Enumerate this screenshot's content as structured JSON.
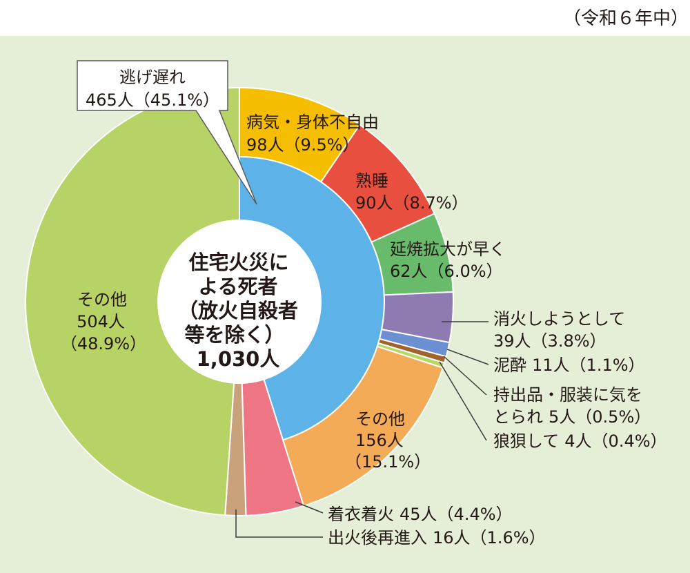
{
  "note": "（令和６年中）",
  "chart_data": {
    "type": "pie",
    "center_label": [
      "住宅火災に",
      "よる死者",
      "（放火自殺者",
      "等を除く）",
      "1,030人"
    ],
    "total": 1030,
    "slices": [
      {
        "name": "逃げ遅れ",
        "value": 465,
        "percent": 45.1,
        "count": "465人",
        "pct": "（45.1%）",
        "color": "#5db3e8",
        "breakdown": [
          {
            "name": "病気・身体不自由",
            "value": 98,
            "percent": 9.5,
            "count": "98人",
            "pct": "（9.5%）",
            "color": "#f5be00"
          },
          {
            "name": "熟睡",
            "value": 90,
            "percent": 8.7,
            "count": "90人",
            "pct": "（8.7%）",
            "color": "#e84f3f"
          },
          {
            "name": "延焼拡大が早く",
            "value": 62,
            "percent": 6.0,
            "count": "62人",
            "pct": "（6.0%）",
            "color": "#67bb6b"
          },
          {
            "name": "消火しようとして",
            "value": 39,
            "percent": 3.8,
            "count": "39人",
            "pct": "（3.8%）",
            "color": "#8e7bb2"
          },
          {
            "name": "泥酔",
            "value": 11,
            "percent": 1.1,
            "count": "11人",
            "pct": "（1.1%）",
            "color": "#6d90d2"
          },
          {
            "name_lines": [
              "持出品・服装に気を",
              "とられ"
            ],
            "value": 5,
            "percent": 0.5,
            "count": "5人",
            "pct": "（0.5%）",
            "color": "#a2632b"
          },
          {
            "name": "狼狽して",
            "value": 4,
            "percent": 0.4,
            "count": "4人",
            "pct": "（0.4%）",
            "color": "#b6d764"
          },
          {
            "name": "その他",
            "value": 156,
            "percent": 15.1,
            "count": "156人",
            "pct": "（15.1%）",
            "color": "#f4ab57"
          }
        ]
      },
      {
        "name": "着衣着火",
        "value": 45,
        "percent": 4.4,
        "count": "45人",
        "pct": "（4.4%）",
        "color": "#ee7684"
      },
      {
        "name": "出火後再進入",
        "value": 16,
        "percent": 1.6,
        "count": "16人",
        "pct": "（1.6%）",
        "color": "#c9a17b"
      },
      {
        "name": "その他",
        "value": 504,
        "percent": 48.9,
        "count": "504人",
        "pct": "（48.9%）",
        "color": "#b7d366"
      }
    ]
  }
}
